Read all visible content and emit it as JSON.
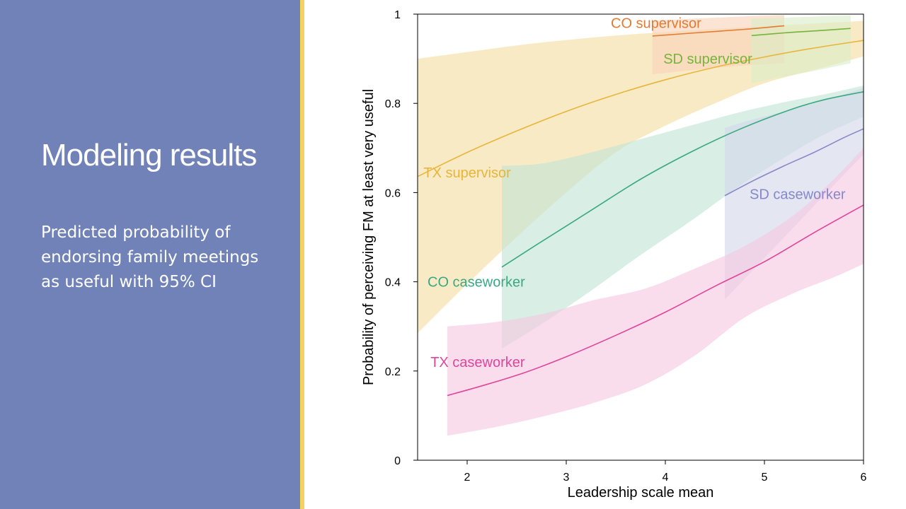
{
  "slide": {
    "title": "Modeling results",
    "subtitle": "Predicted probability of endorsing family meetings as useful with 95% CI",
    "panel_color": "#7082b8",
    "accent_color": "#f3d35c"
  },
  "chart_data": {
    "type": "line",
    "xlabel": "Leadership scale mean",
    "ylabel": "Probability of perceiving FM at least very useful",
    "xlim": [
      1.5,
      6
    ],
    "ylim": [
      0,
      1
    ],
    "xticks": [
      2,
      3,
      4,
      5,
      6
    ],
    "yticks": [
      0,
      0.2,
      0.4,
      0.6,
      0.8,
      1
    ],
    "ytick_labels": [
      "0",
      "0.2",
      "0.4",
      "0.6",
      "0.8",
      "1"
    ],
    "grid": false,
    "legend": "inline labels",
    "series": [
      {
        "name": "TX supervisor",
        "color": "#e8b53a",
        "band_color": "#f5dca0",
        "label_pos": [
          1.56,
          0.645
        ],
        "points": [
          [
            1.5,
            0.636
          ],
          [
            2,
            0.69
          ],
          [
            2.5,
            0.738
          ],
          [
            3,
            0.782
          ],
          [
            3.5,
            0.82
          ],
          [
            4,
            0.853
          ],
          [
            4.5,
            0.881
          ],
          [
            5,
            0.904
          ],
          [
            5.5,
            0.924
          ],
          [
            6,
            0.941
          ]
        ],
        "lower": [
          [
            1.5,
            0.285
          ],
          [
            2,
            0.395
          ],
          [
            2.5,
            0.5
          ],
          [
            3,
            0.6
          ],
          [
            3.5,
            0.69
          ],
          [
            4,
            0.75
          ],
          [
            4.5,
            0.8
          ],
          [
            5,
            0.845
          ],
          [
            5.5,
            0.875
          ],
          [
            6,
            0.905
          ]
        ],
        "upper": [
          [
            1.5,
            0.9
          ],
          [
            2,
            0.915
          ],
          [
            2.5,
            0.93
          ],
          [
            3,
            0.942
          ],
          [
            3.5,
            0.952
          ],
          [
            4,
            0.96
          ],
          [
            4.5,
            0.967
          ],
          [
            5,
            0.973
          ],
          [
            5.5,
            0.979
          ],
          [
            6,
            0.985
          ]
        ]
      },
      {
        "name": "CO caseworker",
        "color": "#3aa882",
        "band_color": "#bfe5d5",
        "label_pos": [
          1.6,
          0.4
        ],
        "points": [
          [
            2.35,
            0.433
          ],
          [
            2.75,
            0.49
          ],
          [
            3.25,
            0.56
          ],
          [
            3.75,
            0.63
          ],
          [
            4.25,
            0.69
          ],
          [
            4.75,
            0.742
          ],
          [
            5.25,
            0.785
          ],
          [
            5.6,
            0.808
          ],
          [
            6,
            0.826
          ]
        ],
        "lower": [
          [
            2.35,
            0.25
          ],
          [
            2.75,
            0.305
          ],
          [
            3.25,
            0.38
          ],
          [
            3.75,
            0.46
          ],
          [
            4.25,
            0.535
          ],
          [
            4.75,
            0.615
          ],
          [
            5.25,
            0.685
          ],
          [
            5.6,
            0.73
          ],
          [
            6,
            0.77
          ]
        ],
        "upper": [
          [
            2.35,
            0.66
          ],
          [
            2.75,
            0.665
          ],
          [
            3.25,
            0.69
          ],
          [
            3.75,
            0.72
          ],
          [
            4.25,
            0.75
          ],
          [
            4.75,
            0.78
          ],
          [
            5.25,
            0.805
          ],
          [
            5.6,
            0.82
          ],
          [
            6,
            0.84
          ]
        ]
      },
      {
        "name": "SD caseworker",
        "color": "#8688c8",
        "band_color": "#d2d5ea",
        "label_pos": [
          4.85,
          0.597
        ],
        "points": [
          [
            4.6,
            0.593
          ],
          [
            4.9,
            0.628
          ],
          [
            5.2,
            0.66
          ],
          [
            5.5,
            0.69
          ],
          [
            5.8,
            0.723
          ],
          [
            6,
            0.743
          ]
        ],
        "lower": [
          [
            4.6,
            0.36
          ],
          [
            4.9,
            0.43
          ],
          [
            5.2,
            0.5
          ],
          [
            5.5,
            0.57
          ],
          [
            5.8,
            0.64
          ],
          [
            6,
            0.685
          ]
        ],
        "upper": [
          [
            4.6,
            0.745
          ],
          [
            4.9,
            0.765
          ],
          [
            5.2,
            0.782
          ],
          [
            5.5,
            0.8
          ],
          [
            5.8,
            0.82
          ],
          [
            6,
            0.835
          ]
        ]
      },
      {
        "name": "TX caseworker",
        "color": "#e0459a",
        "band_color": "#f6c7e0",
        "label_pos": [
          1.63,
          0.22
        ],
        "points": [
          [
            1.8,
            0.145
          ],
          [
            2.2,
            0.17
          ],
          [
            2.6,
            0.198
          ],
          [
            3,
            0.232
          ],
          [
            3.5,
            0.28
          ],
          [
            4,
            0.332
          ],
          [
            4.5,
            0.39
          ],
          [
            5,
            0.445
          ],
          [
            5.5,
            0.51
          ],
          [
            6,
            0.572
          ]
        ],
        "lower": [
          [
            1.8,
            0.055
          ],
          [
            2.3,
            0.075
          ],
          [
            2.8,
            0.1
          ],
          [
            3.3,
            0.13
          ],
          [
            3.8,
            0.17
          ],
          [
            4.3,
            0.235
          ],
          [
            4.8,
            0.32
          ],
          [
            5.3,
            0.375
          ],
          [
            5.7,
            0.41
          ],
          [
            6,
            0.44
          ]
        ],
        "upper": [
          [
            1.8,
            0.3
          ],
          [
            2.3,
            0.31
          ],
          [
            2.8,
            0.33
          ],
          [
            3.3,
            0.36
          ],
          [
            3.8,
            0.385
          ],
          [
            4.3,
            0.43
          ],
          [
            4.8,
            0.48
          ],
          [
            5.3,
            0.55
          ],
          [
            5.7,
            0.63
          ],
          [
            6,
            0.7
          ]
        ]
      },
      {
        "name": "CO supervisor",
        "color": "#e27b34",
        "band_color": "#f8d2b8",
        "label_pos": [
          3.45,
          0.98
        ],
        "points": [
          [
            3.87,
            0.951
          ],
          [
            4.3,
            0.958
          ],
          [
            4.8,
            0.966
          ],
          [
            5.2,
            0.974
          ]
        ],
        "lower": [
          [
            3.87,
            0.865
          ],
          [
            4.3,
            0.875
          ],
          [
            4.8,
            0.885
          ],
          [
            5.2,
            0.89
          ]
        ],
        "upper": [
          [
            3.87,
            0.985
          ],
          [
            4.3,
            0.99
          ],
          [
            4.8,
            0.995
          ],
          [
            5.2,
            0.998
          ]
        ]
      },
      {
        "name": "SD supervisor",
        "color": "#76b43c",
        "band_color": "#d9ecc6",
        "label_pos": [
          3.98,
          0.9
        ],
        "points": [
          [
            4.87,
            0.952
          ],
          [
            5.2,
            0.958
          ],
          [
            5.55,
            0.963
          ],
          [
            5.87,
            0.968
          ]
        ],
        "lower": [
          [
            4.87,
            0.845
          ],
          [
            5.2,
            0.86
          ],
          [
            5.55,
            0.875
          ],
          [
            5.87,
            0.89
          ]
        ],
        "upper": [
          [
            4.87,
            0.99
          ],
          [
            5.2,
            0.992
          ],
          [
            5.55,
            0.995
          ],
          [
            5.87,
            0.997
          ]
        ]
      }
    ]
  }
}
